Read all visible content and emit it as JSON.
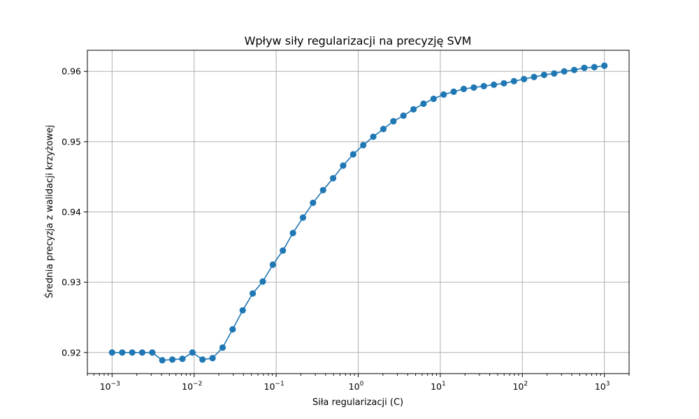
{
  "chart_data": {
    "type": "line",
    "title": "Wpływ siły regularizacji na precyzję SVM",
    "xlabel": "Siła regularizacji (C)",
    "ylabel": "Średnia precyzja z walidacji krzyżowej",
    "xscale": "log",
    "xlim": [
      0.0005,
      2000
    ],
    "ylim": [
      0.917,
      0.963
    ],
    "grid": true,
    "color": "#1f77b4",
    "marker": "circle",
    "x_ticks": [
      {
        "base": "10",
        "exp": "−3",
        "value": 0.001
      },
      {
        "base": "10",
        "exp": "−2",
        "value": 0.01
      },
      {
        "base": "10",
        "exp": "−1",
        "value": 0.1
      },
      {
        "base": "10",
        "exp": "0",
        "value": 1
      },
      {
        "base": "10",
        "exp": "1",
        "value": 10
      },
      {
        "base": "10",
        "exp": "2",
        "value": 100
      },
      {
        "base": "10",
        "exp": "3",
        "value": 1000
      }
    ],
    "y_ticks": [
      {
        "label": "0.92",
        "value": 0.92
      },
      {
        "label": "0.93",
        "value": 0.93
      },
      {
        "label": "0.94",
        "value": 0.94
      },
      {
        "label": "0.95",
        "value": 0.95
      },
      {
        "label": "0.96",
        "value": 0.96
      }
    ],
    "x": [
      0.001,
      0.00133,
      0.00176,
      0.00233,
      0.00309,
      0.00409,
      0.00543,
      0.0072,
      0.00954,
      0.01265,
      0.01677,
      0.02223,
      0.02947,
      0.03907,
      0.0518,
      0.06866,
      0.09103,
      0.12068,
      0.15999,
      0.2121,
      0.28118,
      0.37276,
      0.49417,
      0.65513,
      0.86851,
      1.1514,
      1.52642,
      2.02359,
      2.6827,
      3.55648,
      4.71487,
      6.25055,
      8.28643,
      10.98541,
      14.56348,
      19.30698,
      25.59548,
      33.93222,
      44.98433,
      59.63623,
      79.06043,
      104.81131,
      138.94955,
      184.207,
      244.20531,
      323.74575,
      429.19343,
      568.9866,
      754.31201,
      1000
    ],
    "y": [
      0.92,
      0.92,
      0.92,
      0.92,
      0.92,
      0.9189,
      0.919,
      0.9191,
      0.92,
      0.919,
      0.9192,
      0.9207,
      0.9233,
      0.926,
      0.9284,
      0.9301,
      0.9325,
      0.9345,
      0.937,
      0.9392,
      0.9413,
      0.9431,
      0.9448,
      0.9466,
      0.9482,
      0.9495,
      0.9507,
      0.9518,
      0.9529,
      0.9537,
      0.9546,
      0.9554,
      0.9561,
      0.9567,
      0.9571,
      0.9575,
      0.9577,
      0.9579,
      0.9581,
      0.9583,
      0.9586,
      0.9589,
      0.9592,
      0.9595,
      0.9597,
      0.96,
      0.9602,
      0.9605,
      0.9606,
      0.9608
    ]
  }
}
